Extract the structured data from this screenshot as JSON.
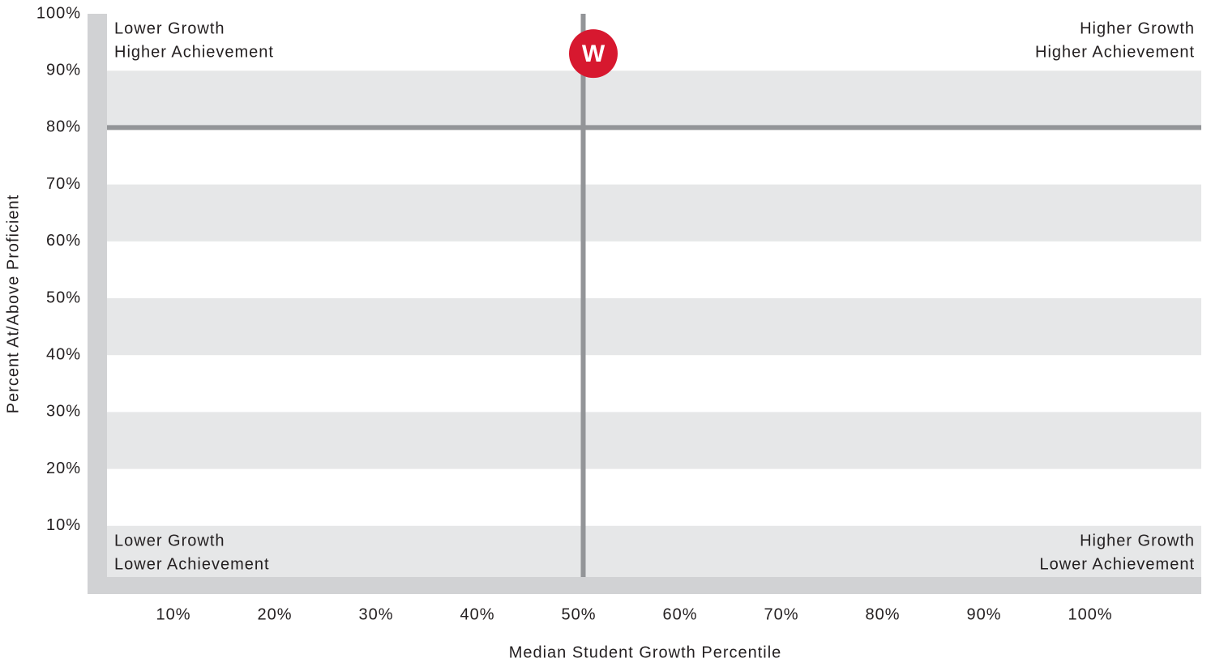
{
  "chart_data": {
    "type": "scatter",
    "x_label": "Median Student Growth Percentile",
    "y_label": "Percent At/Above Proficient",
    "x": [
      51
    ],
    "values": [
      93
    ],
    "point_labels": [
      "W"
    ],
    "color": "#d7182f",
    "xlim": [
      3,
      111
    ],
    "ylim": [
      1,
      100
    ],
    "xticks": [
      {
        "value": 10,
        "label": "10%"
      },
      {
        "value": 20,
        "label": "20%"
      },
      {
        "value": 30,
        "label": "30%"
      },
      {
        "value": 40,
        "label": "40%"
      },
      {
        "value": 50,
        "label": "50%"
      },
      {
        "value": 60,
        "label": "60%"
      },
      {
        "value": 70,
        "label": "70%"
      },
      {
        "value": 80,
        "label": "80%"
      },
      {
        "value": 90,
        "label": "90%"
      },
      {
        "value": 100,
        "label": "100%"
      }
    ],
    "yticks": [
      {
        "value": 10,
        "label": "10%"
      },
      {
        "value": 20,
        "label": "20%"
      },
      {
        "value": 30,
        "label": "30%"
      },
      {
        "value": 40,
        "label": "40%"
      },
      {
        "value": 50,
        "label": "50%"
      },
      {
        "value": 60,
        "label": "60%"
      },
      {
        "value": 70,
        "label": "70%"
      },
      {
        "value": 80,
        "label": "80%"
      },
      {
        "value": 90,
        "label": "90%"
      },
      {
        "value": 100,
        "label": "100%"
      }
    ],
    "quadrant_lines": {
      "x": 50,
      "y": 80
    },
    "annotations": [
      {
        "corner": "top-left",
        "lines": [
          "Lower Growth",
          "Higher Achievement"
        ]
      },
      {
        "corner": "top-right",
        "lines": [
          "Higher Growth",
          "Higher Achievement"
        ]
      },
      {
        "corner": "bottom-left",
        "lines": [
          "Lower Growth",
          "Lower Achievement"
        ]
      },
      {
        "corner": "bottom-right",
        "lines": [
          "Higher Growth",
          "Lower Achievement"
        ]
      }
    ]
  }
}
